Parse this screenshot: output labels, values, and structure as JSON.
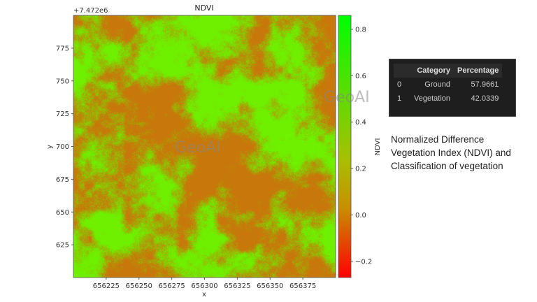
{
  "chart_data": {
    "type": "heatmap",
    "title": "NDVI",
    "xlabel": "x",
    "ylabel": "y",
    "y_offset_label": "+7.472e6",
    "xlim": [
      656200,
      656400
    ],
    "ylim": [
      600,
      800
    ],
    "xticks": [
      656225,
      656250,
      656275,
      656300,
      656325,
      656350,
      656375
    ],
    "yticks": [
      625,
      650,
      675,
      700,
      725,
      750,
      775
    ],
    "colorbar": {
      "label": "NDVI",
      "range": [
        -0.27,
        0.86
      ],
      "ticks": [
        -0.2,
        0.0,
        0.2,
        0.4,
        0.6,
        0.8
      ],
      "tick_labels": [
        "−0.2",
        "0.0",
        "0.2",
        "0.4",
        "0.6",
        "0.8"
      ],
      "colors": [
        "#ff0000",
        "#c8a000",
        "#00ff00"
      ]
    }
  },
  "watermark": "GeoAI",
  "table": {
    "headers": [
      "",
      "Category",
      "Percentage"
    ],
    "rows": [
      {
        "index": "0",
        "category": "Ground",
        "percentage": "57.9661"
      },
      {
        "index": "1",
        "category": "Vegetation",
        "percentage": "42.0339"
      }
    ]
  },
  "caption": "Normalized Difference Vegetation Index (NDVI) and Classification of vegetation"
}
